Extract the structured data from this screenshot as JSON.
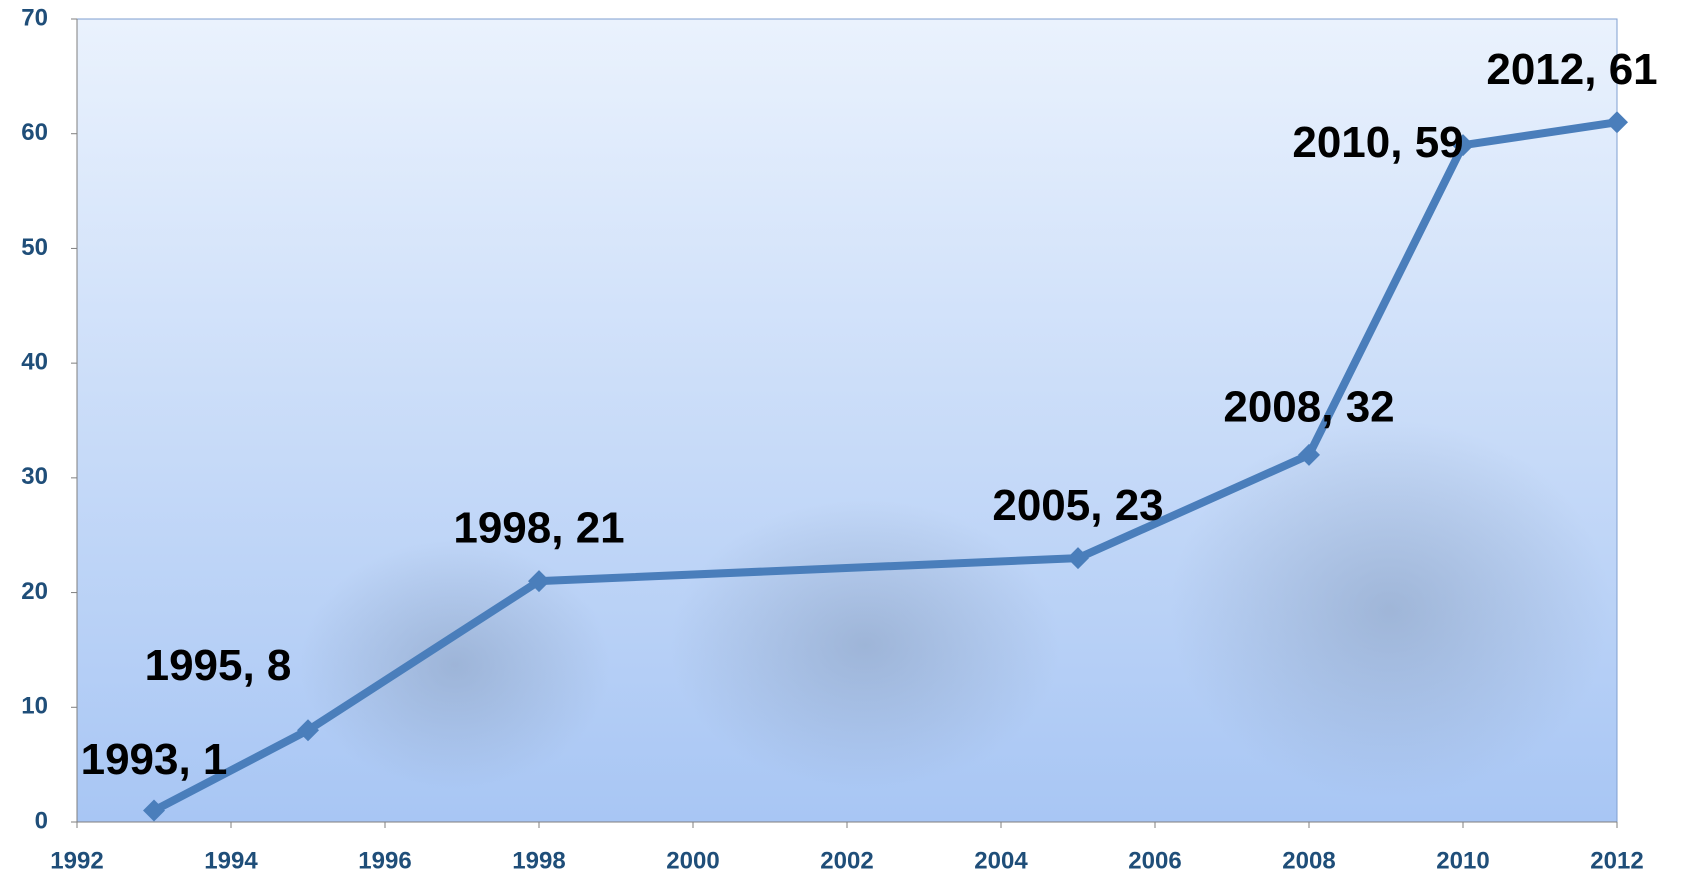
{
  "chart_data": {
    "type": "line",
    "x": [
      1993,
      1995,
      1998,
      2005,
      2008,
      2010,
      2012
    ],
    "series": [
      {
        "color": "#4a7ebb",
        "values": [
          1,
          8,
          21,
          23,
          32,
          59,
          61
        ],
        "value_labels": [
          "1993, 1",
          "1995, 8",
          "1998, 21",
          "2005, 23",
          "2008, 32",
          "2010, 59",
          "2012, 61"
        ]
      }
    ],
    "xlim": [
      1992,
      2012
    ],
    "xticks": [
      1992,
      1994,
      1996,
      1998,
      2000,
      2002,
      2004,
      2006,
      2008,
      2010,
      2012
    ],
    "ylim": [
      0,
      70
    ],
    "yticks": [
      0,
      10,
      20,
      30,
      40,
      50,
      60,
      70
    ]
  }
}
